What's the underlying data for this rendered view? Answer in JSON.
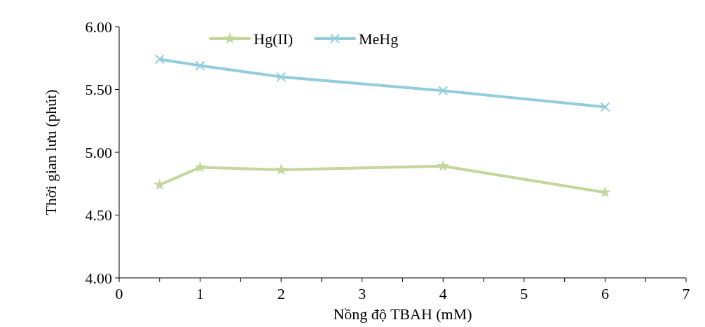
{
  "chart_data": {
    "type": "line",
    "xlabel": "Nồng độ TBAH (mM)",
    "ylabel": "Thời gian lưu (phút)",
    "x": [
      0.5,
      1,
      2,
      4,
      6
    ],
    "series": [
      {
        "name": "Hg(II)",
        "color": "#c3d69b",
        "marker": "star",
        "values": [
          4.74,
          4.88,
          4.86,
          4.89,
          4.68
        ]
      },
      {
        "name": "MeHg",
        "color": "#93cddd",
        "marker": "cross",
        "values": [
          5.74,
          5.69,
          5.6,
          5.49,
          5.36
        ]
      }
    ],
    "xlim": [
      0,
      7
    ],
    "xticks": [
      0,
      {
        "value": 0.5,
        "label": null
      },
      1,
      {
        "value": 1.5,
        "label": null
      },
      2,
      {
        "value": 2.5,
        "label": null
      },
      3,
      {
        "value": 3.5,
        "label": null
      },
      4,
      {
        "value": 4.5,
        "label": null
      },
      5,
      {
        "value": 5.5,
        "label": null
      },
      6,
      {
        "value": 6.5,
        "label": null
      },
      7
    ],
    "ylim": [
      4,
      6
    ],
    "yticks": [
      {
        "value": 4,
        "label": "4.00"
      },
      {
        "value": 4.5,
        "label": "4.50"
      },
      {
        "value": 5,
        "label": "5.00"
      },
      {
        "value": 5.5,
        "label": "5.50"
      },
      {
        "value": 6,
        "label": "6.00"
      }
    ],
    "legend": "top left",
    "grid": false,
    "line_style": "solid"
  }
}
